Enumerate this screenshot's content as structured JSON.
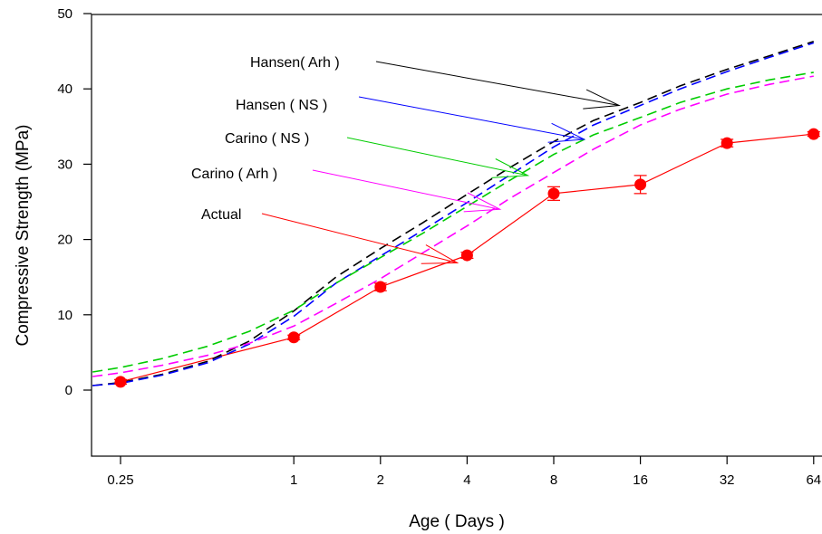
{
  "chart_data": {
    "type": "line",
    "xlabel": "Age ( Days )",
    "ylabel": "Compressive Strength (MPa)",
    "x_scale": "log2",
    "xlim": [
      0.2,
      66
    ],
    "ylim": [
      -10,
      50
    ],
    "x_ticks": [
      {
        "value": 0.25,
        "label": "0.25"
      },
      {
        "value": 1,
        "label": "1"
      },
      {
        "value": 2,
        "label": "2"
      },
      {
        "value": 4,
        "label": "4"
      },
      {
        "value": 8,
        "label": "8"
      },
      {
        "value": 16,
        "label": "16"
      },
      {
        "value": 32,
        "label": "32"
      },
      {
        "value": 64,
        "label": "64"
      }
    ],
    "y_ticks": [
      {
        "value": 0,
        "label": "0"
      },
      {
        "value": 10,
        "label": "10"
      },
      {
        "value": 20,
        "label": "20"
      },
      {
        "value": 30,
        "label": "30"
      },
      {
        "value": 40,
        "label": "40"
      },
      {
        "value": 50,
        "label": "50"
      }
    ],
    "grid": false,
    "series": [
      {
        "name": "Actual",
        "color": "#ff0000",
        "style": "solid",
        "markers": true,
        "x": [
          0.25,
          1,
          2,
          4,
          8,
          16,
          32,
          64
        ],
        "y": [
          1.1,
          7.0,
          13.7,
          17.9,
          26.1,
          27.3,
          32.8,
          34.0
        ],
        "error": [
          0.3,
          0.3,
          0.5,
          0.4,
          0.9,
          1.2,
          0.5,
          0.3
        ]
      },
      {
        "name": "Hansen( Arh )",
        "color": "#000000",
        "style": "dashed",
        "x": [
          0.2,
          0.25,
          0.35,
          0.5,
          0.7,
          1,
          1.4,
          2,
          2.8,
          4,
          5.6,
          8,
          11,
          16,
          22,
          32,
          45,
          64
        ],
        "y": [
          0.6,
          1.0,
          2.1,
          3.8,
          6.5,
          10.5,
          15.0,
          18.8,
          22.2,
          26.0,
          29.5,
          33.0,
          35.8,
          38.2,
          40.4,
          42.6,
          44.4,
          46.3
        ]
      },
      {
        "name": "Hansen ( NS )",
        "color": "#0000ff",
        "style": "dashed",
        "x": [
          0.2,
          0.25,
          0.35,
          0.5,
          0.7,
          1,
          1.4,
          2,
          2.8,
          4,
          5.6,
          8,
          11,
          16,
          22,
          32,
          45,
          64
        ],
        "y": [
          0.6,
          0.9,
          2.0,
          3.6,
          6.1,
          9.8,
          14.2,
          17.8,
          21.2,
          24.9,
          28.5,
          32.3,
          35.2,
          37.8,
          40.0,
          42.3,
          44.2,
          46.1
        ]
      },
      {
        "name": "Carino ( NS )",
        "color": "#00cc00",
        "style": "dashed",
        "x": [
          0.2,
          0.25,
          0.35,
          0.5,
          0.7,
          1,
          1.4,
          2,
          2.8,
          4,
          5.6,
          8,
          11,
          16,
          22,
          32,
          45,
          64
        ],
        "y": [
          2.4,
          3.0,
          4.2,
          5.8,
          7.8,
          10.6,
          14.2,
          17.6,
          20.8,
          24.4,
          27.8,
          31.3,
          33.9,
          36.2,
          38.2,
          40.0,
          41.2,
          42.2
        ]
      },
      {
        "name": "Carino ( Arh )",
        "color": "#ff00ff",
        "style": "dashed",
        "x": [
          0.2,
          0.25,
          0.35,
          0.5,
          0.7,
          1,
          1.4,
          2,
          2.8,
          4,
          5.6,
          8,
          11,
          16,
          22,
          32,
          45,
          64
        ],
        "y": [
          1.8,
          2.3,
          3.3,
          4.6,
          6.2,
          8.5,
          11.5,
          14.8,
          18.2,
          21.8,
          25.4,
          28.9,
          32.0,
          35.2,
          37.3,
          39.3,
          40.6,
          41.7
        ]
      }
    ],
    "annotations": [
      {
        "text": "Hansen( Arh )",
        "series": "Hansen( Arh )",
        "arrow_to": [
          13.5,
          37.8
        ]
      },
      {
        "text": "Hansen ( NS )",
        "series": "Hansen ( NS )",
        "arrow_to": [
          10.2,
          33.3
        ]
      },
      {
        "text": "Carino ( NS )",
        "series": "Carino ( NS )",
        "arrow_to": [
          6.5,
          28.5
        ]
      },
      {
        "text": "Carino ( Arh )",
        "series": "Carino ( Arh )",
        "arrow_to": [
          5.2,
          24.0
        ]
      },
      {
        "text": "Actual",
        "series": "Actual",
        "arrow_to": [
          3.7,
          16.9
        ]
      }
    ]
  }
}
